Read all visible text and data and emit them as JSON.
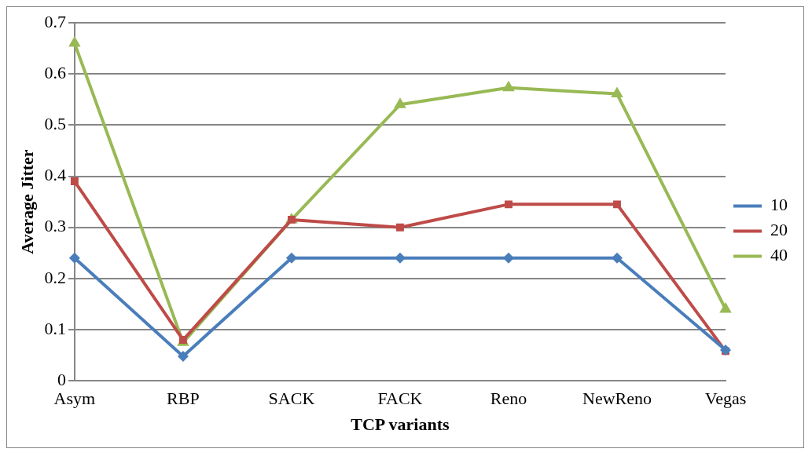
{
  "chart_data": {
    "type": "line",
    "xlabel": "TCP variants",
    "ylabel": "Average Jitter",
    "categories": [
      "Asym",
      "RBP",
      "SACK",
      "FACK",
      "Reno",
      "NewReno",
      "Vegas"
    ],
    "series": [
      {
        "name": "10",
        "color": "#4a7ebb",
        "marker": "diamond",
        "values": [
          0.24,
          0.048,
          0.24,
          0.24,
          0.24,
          0.24,
          0.06
        ]
      },
      {
        "name": "20",
        "color": "#be4b48",
        "marker": "square",
        "values": [
          0.39,
          0.08,
          0.315,
          0.3,
          0.345,
          0.345,
          0.058
        ]
      },
      {
        "name": "40",
        "color": "#98b954",
        "marker": "triangle",
        "values": [
          0.66,
          0.075,
          0.315,
          0.54,
          0.573,
          0.561,
          0.14
        ]
      }
    ],
    "ylim": [
      0,
      0.7
    ],
    "yticks": [
      0,
      0.1,
      0.2,
      0.3,
      0.4,
      0.5,
      0.6,
      0.7
    ],
    "grid": "y",
    "legend": "right"
  }
}
